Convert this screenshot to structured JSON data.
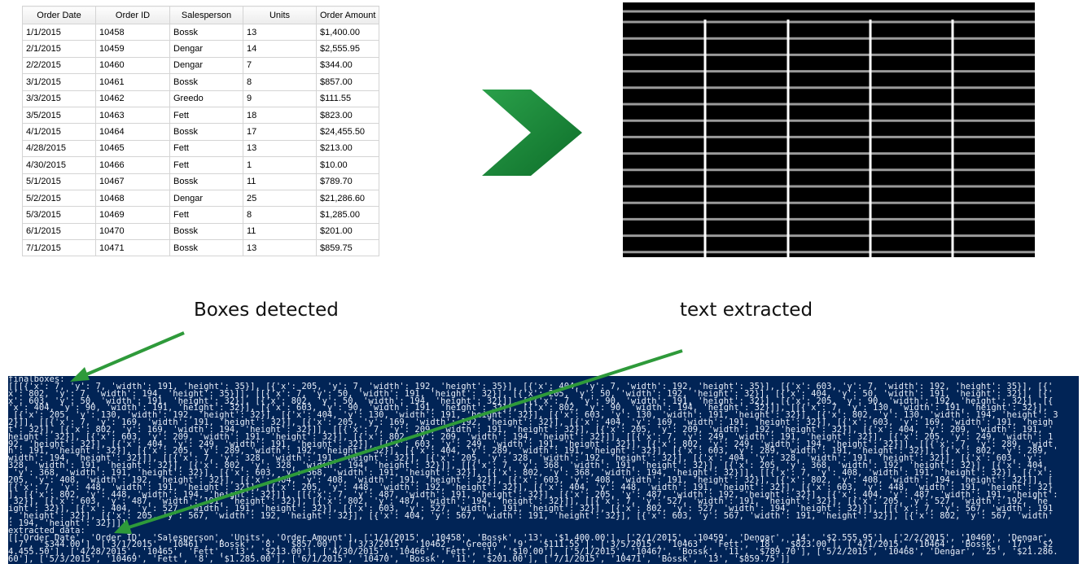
{
  "table": {
    "columns": [
      "Order Date",
      "Order ID",
      "Salesperson",
      "Units",
      "Order Amount"
    ],
    "rows": [
      [
        "1/1/2015",
        "10458",
        "Bossk",
        "13",
        "$1,400.00"
      ],
      [
        "2/1/2015",
        "10459",
        "Dengar",
        "14",
        "$2,555.95"
      ],
      [
        "2/2/2015",
        "10460",
        "Dengar",
        "7",
        "$344.00"
      ],
      [
        "3/1/2015",
        "10461",
        "Bossk",
        "8",
        "$857.00"
      ],
      [
        "3/3/2015",
        "10462",
        "Greedo",
        "9",
        "$111.55"
      ],
      [
        "3/5/2015",
        "10463",
        "Fett",
        "18",
        "$823.00"
      ],
      [
        "4/1/2015",
        "10464",
        "Bossk",
        "17",
        "$24,455.50"
      ],
      [
        "4/28/2015",
        "10465",
        "Fett",
        "13",
        "$213.00"
      ],
      [
        "4/30/2015",
        "10466",
        "Fett",
        "1",
        "$10.00"
      ],
      [
        "5/1/2015",
        "10467",
        "Bossk",
        "11",
        "$789.70"
      ],
      [
        "5/2/2015",
        "10468",
        "Dengar",
        "25",
        "$21,286.60"
      ],
      [
        "5/3/2015",
        "10469",
        "Fett",
        "8",
        "$1,285.00"
      ],
      [
        "6/1/2015",
        "10470",
        "Bossk",
        "11",
        "$201.00"
      ],
      [
        "7/1/2015",
        "10471",
        "Bossk",
        "13",
        "$859.75"
      ]
    ]
  },
  "captions": {
    "boxes": "Boxes detected",
    "text": "text extracted"
  },
  "terminal": {
    "lines": [
      "finalboxes:",
      "[[[{'x': 7, 'y': 7, 'width': 191, 'height': 35}], [{'x': 205, 'y': 7, 'width': 192, 'height': 35}], [{'x': 404, 'y': 7, 'width': 192, 'height': 35}], [{'x': 603, 'y': 7, 'width': 192, 'height': 35}], [{'",
      "x': 802, 'y': 7, 'width': 194, 'height': 35}]], [[{'x': 7, 'y': 50, 'width': 191, 'height': 32}], [{'x': 205, 'y': 50, 'width': 192, 'height': 32}], [{'x': 404, 'y': 50, 'width': 191, 'height': 32}], [{'",
      "x': 603, 'y': 50, 'width': 191, 'height': 32}], [{'x': 802, 'y': 50, 'width': 194, 'height': 32}]], [[{'x': 7, 'y': 90, 'width': 191, 'height': 32}], [{'x': 205, 'y': 90, 'width': 192, 'height': 32}], [{",
      "'x': 404, 'y': 90, 'width': 191, 'height': 32}], [{'x': 603, 'y': 90, 'width': 191, 'height': 32}], [{'x': 802, 'y': 90, 'width': 194, 'height': 32}]], [[{'x': 7, 'y': 130, 'width': 191, 'height': 32}],",
      " [{'x': 205, 'y': 130, 'width': 192, 'height': 32}], [{'x': 404, 'y': 130, 'width': 191, 'height': 32}], [{'x': 603, 'y': 130, 'width': 191, 'height': 32}], [{'x': 802, 'y': 130, 'width': 194, 'height': 3",
      "2}]], [[{'x': 7, 'y': 169, 'width': 191, 'height': 32}], [{'x': 205, 'y': 169, 'width': 192, 'height': 32}], [{'x': 404, 'y': 169, 'width': 191, 'height': 32}], [{'x': 603, 'y': 169, 'width': 191, 'heigh",
      "t': 32}], [{'x': 802, 'y': 169, 'width': 194, 'height': 32}]], [[{'x': 7, 'y': 209, 'width': 191, 'height': 32}], [{'x': 205, 'y': 209, 'width': 192, 'height': 32}], [{'x': 404, 'y': 209, 'width': 191, '",
      "height': 32}], [{'x': 603, 'y': 209, 'width': 191, 'height': 32}], [{'x': 802, 'y': 209, 'width': 194, 'height': 32}]], [[{'x': 7, 'y': 249, 'width': 191, 'height': 32}], [{'x': 205, 'y': 249, 'width': 1",
      "92, 'height': 32}], [{'x': 404, 'y': 249, 'width': 191, 'height': 32}], [{'x': 603, 'y': 249, 'width': 191, 'height': 32}], [{'x': 802, 'y': 249, 'width': 194, 'height': 32}]], [[{'x': 7, 'y': 289, 'widt",
      "h': 191, 'height': 32}], [{'x': 205, 'y': 289, 'width': 192, 'height': 32}], [{'x': 404, 'y': 289, 'width': 191, 'height': 32}], [{'x': 603, 'y': 289, 'width': 191, 'height': 32}], [{'x': 802, 'y': 289, '",
      "width': 194, 'height': 32}]], [[{'x': 7, 'y': 328, 'width': 191, 'height': 32}], [{'x': 205, 'y': 328, 'width': 192, 'height': 32}], [{'x': 404, 'y': 328, 'width': 191, 'height': 32}], [{'x': 603, 'y': ",
      "328, 'width': 191, 'height': 32}], [{'x': 802, 'y': 328, 'width': 194, 'height': 32}]], [[{'x': 7, 'y': 368, 'width': 191, 'height': 32}], [{'x': 205, 'y': 368, 'width': 192, 'height': 32}], [{'x': 404,",
      " 'y': 368, 'width': 191, 'height': 32}], [{'x': 603, 'y': 368, 'width': 191, 'height': 32}], [{'x': 802, 'y': 368, 'width': 194, 'height': 32}]], [[{'x': 7, 'y': 408, 'width': 191, 'height': 32}], [{'x': ",
      "205, 'y': 408, 'width': 192, 'height': 32}], [{'x': 404, 'y': 408, 'width': 191, 'height': 32}], [{'x': 603, 'y': 408, 'width': 191, 'height': 32}], [{'x': 802, 'y': 408, 'width': 194, 'height': 32}]], [",
      "[{'x': 7, 'y': 448, 'width': 191, 'height': 32}], [{'x': 205, 'y': 448, 'width': 192, 'height': 32}], [{'x': 404, 'y': 448, 'width': 191, 'height': 32}], [{'x': 603, 'y': 448, 'width': 191, 'height': 32}",
      "], [{'x': 802, 'y': 448, 'width': 194, 'height': 32}]], [[{'x': 7, 'y': 487, 'width': 191, 'height': 32}], [{'x': 205, 'y': 487, 'width': 192, 'height': 32}], [{'x': 404, 'y': 487, 'width': 191, 'height':",
      " 32}], [{'x': 603, 'y': 487, 'width': 191, 'height': 32}], [{'x': 802, 'y': 487, 'width': 194, 'height': 32}]], [[{'x': 7, 'y': 527, 'width': 191, 'height': 32}], [{'x': 205, 'y': 527, 'width': 192, 'he",
      "ight': 32}], [{'x': 404, 'y': 527, 'width': 191, 'height': 32}], [{'x': 603, 'y': 527, 'width': 191, 'height': 32}], [{'x': 802, 'y': 527, 'width': 194, 'height': 32}]], [[{'x': 7, 'y': 567, 'width': 191",
      ", 'height': 32}], [{'x': 205, 'y': 567, 'width': 192, 'height': 32}], [{'x': 404, 'y': 567, 'width': 191, 'height': 32}], [{'x': 603, 'y': 567, 'width': 191, 'height': 32}], [{'x': 802, 'y': 567, 'width'",
      ": 194, 'height': 32}]]]",
      "extracted_data:",
      "[['Order Date', 'Order ID', 'Salesperson', 'Units', 'Order Amount'], ['1/1/2015', '10458', 'Bossk', '13', '$1.400.00'], ['2/1/2015', '10459', 'Dengar', '14', '$2.555.95'], ['2/2/2015', '10460', 'Dengar',",
      " '7', '$344.00'], ['3/1/2015', '10461', 'Bossk', '8', '$857.00'], ['3/3/2015', '10462', 'Greedo', '9', '$111.55'], ['3/5/2015', '10463', 'Fett', '18', '$823.00'], ['4/1/2015', '10464', 'Bossk', '17', '$2",
      "4.455.50'], ['4/28/2015', '10465', 'Fett', '13', '$213.00'], ['4/30/2015', '10466', 'Fett', '1', '$10.00'], ['5/1/2015', '10467', 'Bossk', '11', '$789.70'], ['5/2/2015', '10468', 'Dengar', '25', '$21.286.",
      "60'], ['5/3/2015', '10469', 'Fett', '8', '$1.285.00'], ['6/1/2015', '10470', 'Bossk', '11', '$201.00'], ['7/1/2015', '10471', 'Bossk', '13', '$859.75']]"
    ]
  }
}
